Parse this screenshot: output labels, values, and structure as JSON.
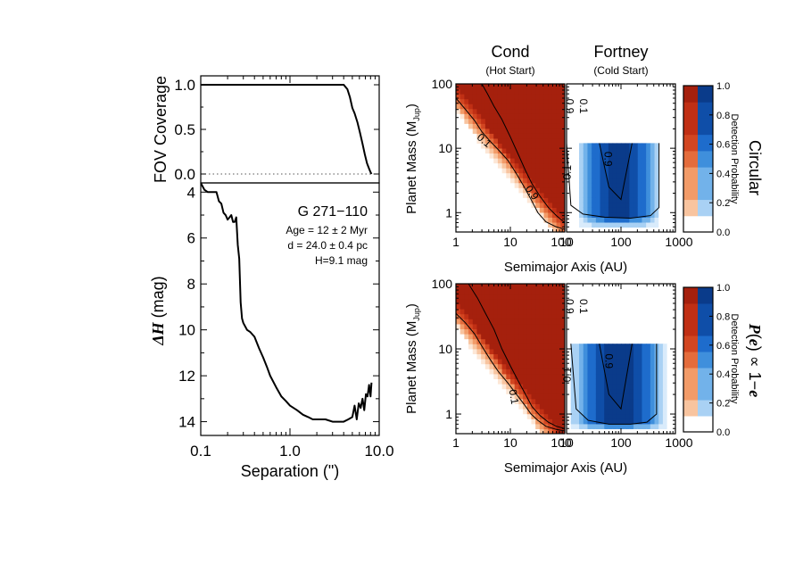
{
  "chart_data": [
    {
      "type": "line",
      "panel": "fov",
      "ylabel": "FOV Coverage",
      "xlog": true,
      "xlim": [
        0.1,
        10.0
      ],
      "ylim": [
        -0.1,
        1.1
      ],
      "yticks": [
        "1.0",
        "0.5",
        "0.0"
      ],
      "ytick_values": [
        1.0,
        0.5,
        0.0
      ],
      "reference_line_y": 0.0,
      "series": [
        {
          "x": [
            0.1,
            0.5,
            1.0,
            2.0,
            4.0,
            4.4,
            4.7,
            5.0,
            5.3,
            5.7,
            6.1,
            6.5,
            6.9,
            7.3,
            7.7,
            8.0,
            8.2
          ],
          "y": [
            1.0,
            1.0,
            1.0,
            1.0,
            1.0,
            0.95,
            0.86,
            0.74,
            0.68,
            0.58,
            0.46,
            0.34,
            0.22,
            0.12,
            0.06,
            0.02,
            0.0
          ]
        }
      ]
    },
    {
      "type": "line",
      "panel": "contrast",
      "ylabel": "ΔH (mag)",
      "xlabel": "Separation (\")",
      "xlog": true,
      "xlim": [
        0.1,
        10.0
      ],
      "ylim": [
        14.6,
        3.6
      ],
      "xticks": [
        "0.1",
        "1.0",
        "10.0"
      ],
      "xtick_values": [
        0.1,
        1.0,
        10.0
      ],
      "yticks": [
        "4",
        "6",
        "8",
        "10",
        "12",
        "14"
      ],
      "ytick_values": [
        4,
        6,
        8,
        10,
        12,
        14
      ],
      "annotation": {
        "target": "G 271−110",
        "age": "Age = 12 ± 2 Myr",
        "distance": "d = 24.0 ± 0.4 pc",
        "hmag": "H=9.1 mag"
      },
      "series": [
        {
          "x": [
            0.1,
            0.11,
            0.12,
            0.13,
            0.14,
            0.15,
            0.16,
            0.17,
            0.18,
            0.19,
            0.2,
            0.21,
            0.22,
            0.23,
            0.24,
            0.25,
            0.26,
            0.27,
            0.28,
            0.29,
            0.3,
            0.33,
            0.36,
            0.4,
            0.45,
            0.5,
            0.55,
            0.6,
            0.7,
            0.8,
            0.9,
            1.0,
            1.2,
            1.4,
            1.6,
            1.8,
            2.0,
            2.5,
            3.0,
            3.5,
            4.0,
            4.5,
            5.0,
            5.3,
            5.6,
            5.9,
            6.2,
            6.5,
            6.8,
            7.1,
            7.4,
            7.7,
            8.0,
            8.2
          ],
          "y": [
            3.6,
            3.9,
            4.0,
            4.0,
            4.0,
            4.0,
            4.4,
            4.5,
            4.9,
            5.0,
            5.2,
            5.1,
            5.0,
            5.3,
            5.3,
            5.1,
            6.3,
            6.9,
            8.8,
            9.5,
            9.7,
            10.0,
            10.1,
            10.3,
            10.8,
            11.2,
            11.6,
            12.0,
            12.5,
            12.9,
            13.1,
            13.3,
            13.5,
            13.7,
            13.8,
            13.9,
            13.9,
            13.9,
            14.0,
            14.0,
            14.0,
            13.9,
            13.8,
            13.3,
            13.9,
            13.2,
            13.4,
            13.0,
            13.5,
            12.8,
            12.9,
            12.4,
            12.9,
            12.3
          ]
        }
      ]
    },
    {
      "type": "heatmap",
      "row": "Circular",
      "model": "Cond",
      "subtitle": "(Hot Start)",
      "xlabel": "Semimajor Axis (AU)",
      "ylabel": "Planet Mass (MJup)",
      "xlog": true,
      "ylog": true,
      "xlim": [
        1,
        100
      ],
      "ylim": [
        0.5,
        100
      ],
      "xticks": [
        "1",
        "10",
        "100"
      ],
      "xtick_values": [
        1,
        10,
        100
      ],
      "yticks": [
        "100",
        "10",
        "1"
      ],
      "ytick_values": [
        100,
        10,
        1
      ],
      "colormap": "diverging-red",
      "contours": [
        {
          "level": "0.1",
          "a": [
            1.0,
            1.5,
            2.2,
            3.0,
            4.2,
            6.0,
            9.0,
            13.0,
            18.0,
            24.0,
            32.0,
            45.0,
            70.0,
            100.0
          ],
          "m": [
            60.0,
            40.0,
            27.0,
            18.0,
            13.0,
            9.5,
            6.5,
            4.0,
            2.5,
            1.6,
            1.0,
            0.72,
            0.6,
            0.55
          ]
        },
        {
          "level": "0.9",
          "a": [
            3.0,
            3.8,
            5.0,
            7.0,
            10.0,
            14.0,
            19.0,
            25.0,
            35.0,
            50.0,
            70.0,
            90.0,
            100.0
          ],
          "m": [
            100.0,
            70.0,
            45.0,
            28.0,
            15.0,
            8.0,
            4.5,
            2.8,
            1.8,
            1.2,
            0.9,
            0.75,
            0.7
          ]
        }
      ],
      "contour_labels": [
        "0.1",
        "0.9"
      ]
    },
    {
      "type": "heatmap",
      "row": "Circular",
      "model": "Fortney",
      "subtitle": "(Cold Start)",
      "xlog": true,
      "ylog": true,
      "xlim": [
        10,
        1000
      ],
      "ylim": [
        0.5,
        100
      ],
      "xticks": [
        "100",
        "1000"
      ],
      "xtick_values": [
        100,
        1000
      ],
      "colormap": "blue",
      "mass_cap": 12,
      "contours": [
        {
          "level": "0.1",
          "a": [
            10.0,
            12.0,
            20.0,
            50.0,
            150.0,
            350.0,
            500.0,
            500.0
          ],
          "m": [
            12.0,
            1.3,
            0.95,
            0.85,
            0.82,
            0.9,
            1.2,
            12.0
          ]
        },
        {
          "level": "0.9",
          "a": [
            40.0,
            60.0,
            100.0,
            160.0
          ],
          "m": [
            12.0,
            2.5,
            1.6,
            12.0
          ]
        }
      ],
      "contour_labels": [
        "0.1",
        "0.9"
      ]
    },
    {
      "type": "heatmap",
      "row": "P(e) ∝ 1−e",
      "model": "Cond",
      "xlabel": "Semimajor Axis (AU)",
      "ylabel": "Planet Mass (MJup)",
      "xlog": true,
      "ylog": true,
      "xlim": [
        1,
        100
      ],
      "ylim": [
        0.5,
        100
      ],
      "xticks": [
        "1",
        "10",
        "100"
      ],
      "xtick_values": [
        1,
        10,
        100
      ],
      "yticks": [
        "100",
        "10",
        "1"
      ],
      "ytick_values": [
        100,
        10,
        1
      ],
      "colormap": "diverging-red",
      "contours": [
        {
          "level": "0.1",
          "a": [
            1.0,
            1.5,
            2.2,
            3.0,
            4.2,
            6.0,
            9.0,
            13.0,
            18.0,
            24.0,
            32.0,
            45.0,
            70.0,
            100.0
          ],
          "m": [
            35.0,
            25.0,
            17.0,
            11.0,
            7.0,
            4.5,
            3.0,
            2.0,
            1.4,
            1.0,
            0.8,
            0.65,
            0.58,
            0.55
          ]
        },
        {
          "level": "0.9",
          "a": [
            1.7,
            2.5,
            3.5,
            5.0,
            7.0,
            10.0,
            14.0,
            19.0,
            25.0,
            35.0,
            50.0,
            70.0,
            100.0
          ],
          "m": [
            100.0,
            60.0,
            35.0,
            20.0,
            10.0,
            5.5,
            3.2,
            2.0,
            1.3,
            0.95,
            0.75,
            0.65,
            0.6
          ]
        }
      ],
      "contour_labels": [
        "0.1",
        "0.9"
      ]
    },
    {
      "type": "heatmap",
      "row": "P(e) ∝ 1−e",
      "model": "Fortney",
      "xlog": true,
      "ylog": true,
      "xlim": [
        10,
        1000
      ],
      "ylim": [
        0.5,
        100
      ],
      "xticks": [
        "100",
        "1000"
      ],
      "xtick_values": [
        100,
        1000
      ],
      "colormap": "blue",
      "mass_cap": 12,
      "contours": [
        {
          "level": "0.1",
          "a": [
            12.0,
            15.0,
            25.0,
            60.0,
            150.0,
            300.0,
            450.0,
            450.0
          ],
          "m": [
            12.0,
            1.2,
            0.8,
            0.7,
            0.7,
            0.75,
            1.0,
            12.0
          ]
        },
        {
          "level": "0.9",
          "a": [
            40.0,
            60.0,
            100.0,
            160.0
          ],
          "m": [
            12.0,
            2.0,
            1.2,
            12.0
          ]
        }
      ],
      "contour_labels": [
        "0.1",
        "0.9"
      ]
    }
  ],
  "headers": {
    "cond": "Cond",
    "cond_sub": "(Hot Start)",
    "fortney": "Fortney",
    "fortney_sub": "(Cold Start)"
  },
  "heat_labels": {
    "xlabel": "Semimajor Axis (AU)",
    "ylabel_main": "Planet Mass (M",
    "ylabel_sub": "Jup",
    "ylabel_end": ")",
    "x_ticks_left": [
      "1",
      "10",
      "100"
    ],
    "x_ticks_right": [
      "10",
      "100",
      "1000"
    ],
    "y_ticks": [
      "100",
      "10",
      "1"
    ]
  },
  "colorbar": {
    "label": "Detection Probability",
    "ticks": [
      "1.0",
      "0.8",
      "0.6",
      "0.4",
      "0.2",
      "0.0"
    ],
    "tick_values": [
      1.0,
      0.8,
      0.6,
      0.4,
      0.2,
      0.0
    ],
    "row_labels": [
      "Circular",
      "P(e) ∝ 1−e"
    ],
    "colors_red": [
      "#ffffff",
      "#fde7d6",
      "#f8c49f",
      "#f29b68",
      "#e46c3c",
      "#d24621",
      "#c02f14",
      "#a5200d"
    ],
    "colors_blue": [
      "#ffffff",
      "#d9ebfb",
      "#a9d1f4",
      "#72b2ea",
      "#3f8fdc",
      "#1e6ccc",
      "#0f4ea8",
      "#0a3b8a"
    ]
  },
  "colors": {
    "line": "#000000",
    "dotted": "#555555"
  }
}
